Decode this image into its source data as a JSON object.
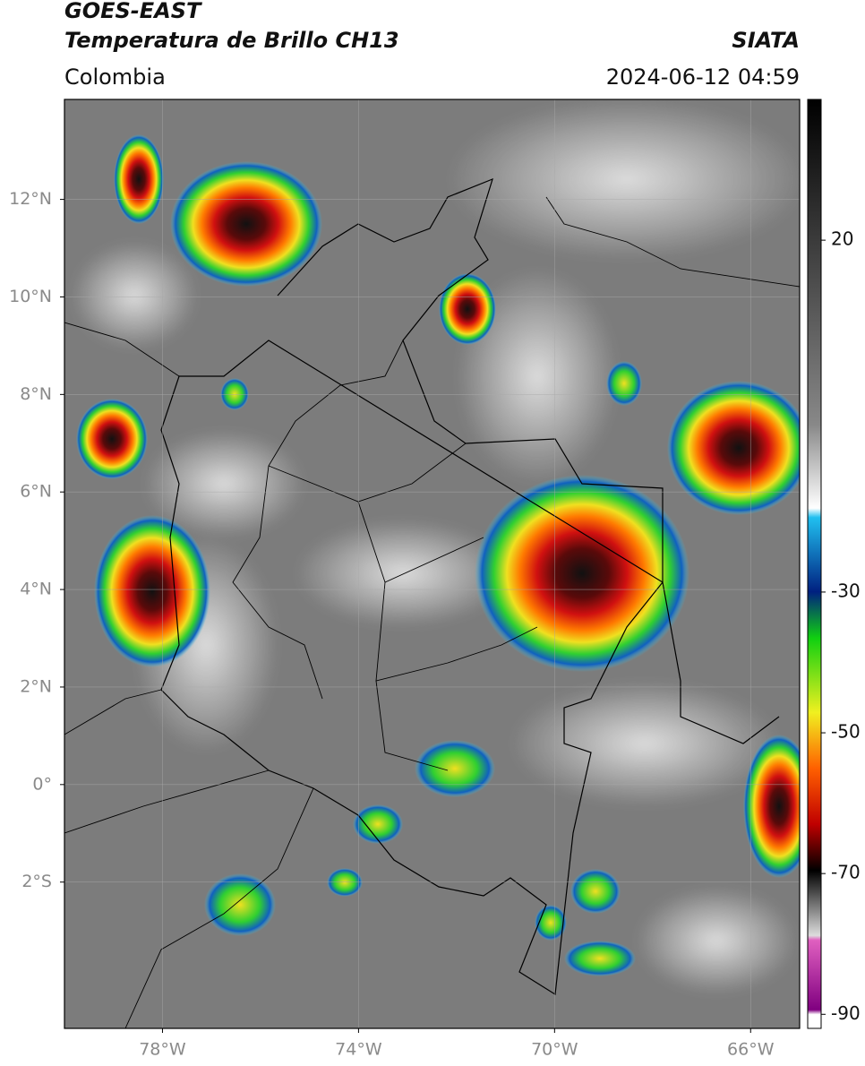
{
  "header": {
    "title_line1": "GOES-EAST",
    "title_line2": "Temperatura de Brillo CH13",
    "source": "SIATA",
    "region": "Colombia",
    "timestamp": "2024-06-12 04:59"
  },
  "map": {
    "xlim": [
      -80,
      -65
    ],
    "ylim": [
      -5,
      14.05
    ],
    "xticks": [
      {
        "value": -78,
        "label": "78°W"
      },
      {
        "value": -74,
        "label": "74°W"
      },
      {
        "value": -70,
        "label": "70°W"
      },
      {
        "value": -66,
        "label": "66°W"
      }
    ],
    "yticks": [
      {
        "value": 12,
        "label": "12°N"
      },
      {
        "value": 10,
        "label": "10°N"
      },
      {
        "value": 8,
        "label": "8°N"
      },
      {
        "value": 6,
        "label": "6°N"
      },
      {
        "value": 4,
        "label": "4°N"
      },
      {
        "value": 2,
        "label": "2°N"
      },
      {
        "value": 0,
        "label": "0°"
      },
      {
        "value": -2,
        "label": "2°S"
      }
    ]
  },
  "colorbar": {
    "lim": [
      -92,
      40
    ],
    "ticks": [
      20,
      -30,
      -50,
      -70,
      -90
    ]
  }
}
